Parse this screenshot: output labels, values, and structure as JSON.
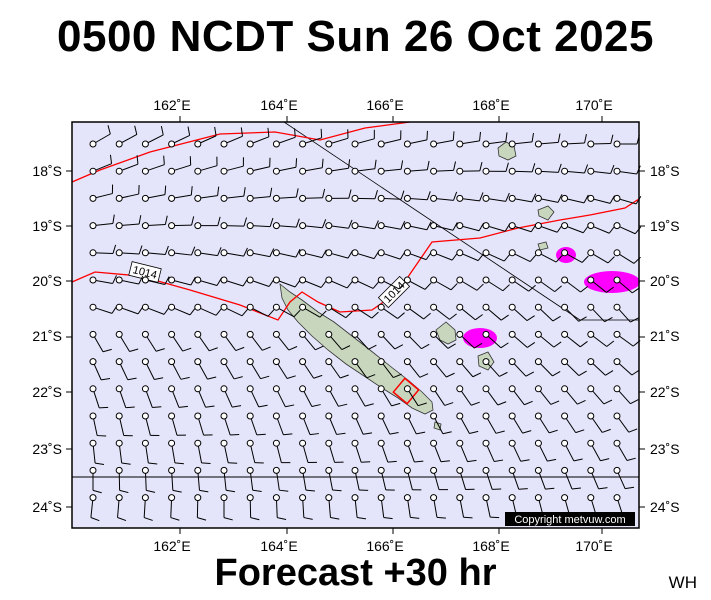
{
  "header": {
    "title": "0500 NCDT Sun 26 Oct 2025"
  },
  "footer": {
    "forecast_label": "Forecast +30 hr",
    "initials": "WH"
  },
  "axes": {
    "longitudes": [
      {
        "value": 162,
        "label": "162˚E"
      },
      {
        "value": 164,
        "label": "164˚E"
      },
      {
        "value": 166,
        "label": "166˚E"
      },
      {
        "value": 168,
        "label": "168˚E"
      },
      {
        "value": 170,
        "label": "170˚E"
      }
    ],
    "latitudes": [
      {
        "value": -18,
        "label": "18˚S"
      },
      {
        "value": -19,
        "label": "19˚S"
      },
      {
        "value": -20,
        "label": "20˚S"
      },
      {
        "value": -21,
        "label": "21˚S"
      },
      {
        "value": -22,
        "label": "22˚S"
      },
      {
        "value": -23,
        "label": "23˚S"
      },
      {
        "value": -24,
        "label": "24˚S"
      }
    ],
    "lon_range": [
      160.0,
      171.0
    ],
    "lat_range": [
      -17.0,
      -24.4
    ]
  },
  "isobars": [
    {
      "label": "1014",
      "value_hpa": 1014
    }
  ],
  "copyright": "Copyright metvuw.com",
  "colors": {
    "ocean": "#e4e4fa",
    "isobar": "#ff0000",
    "land": "#c7d6bd",
    "rain": "#ff00ff",
    "text": "#000000"
  }
}
